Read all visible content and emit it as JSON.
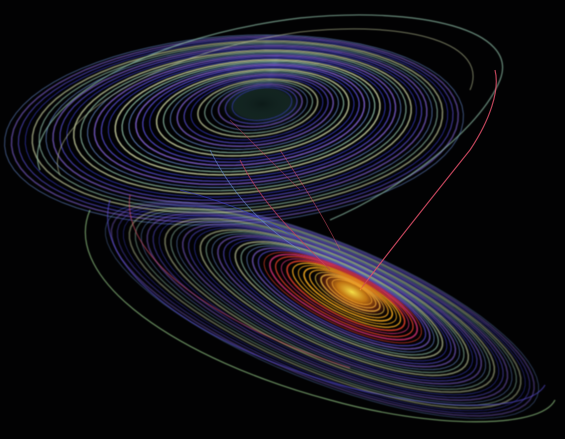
{
  "image": {
    "subject": "strange-attractor",
    "background_color": "#020203",
    "palette": {
      "cool": [
        "#3b3fd0",
        "#5a4fd8",
        "#7c5fcf",
        "#6a8fd8",
        "#8fbfa8",
        "#c8d0a0"
      ],
      "warm": [
        "#ffe84a",
        "#ffb020",
        "#ff7a10",
        "#e8402a",
        "#d03070"
      ],
      "accent_lines": [
        "#e0506a",
        "#c84060",
        "#9ad08a"
      ]
    }
  }
}
